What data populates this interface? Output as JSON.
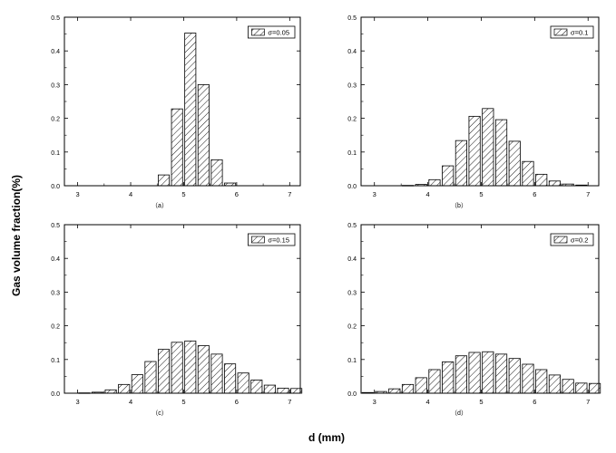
{
  "figure": {
    "ylabel": "Gas volume fraction(%)",
    "xlabel": "d (mm)"
  },
  "chart_data": [
    {
      "type": "bar",
      "subplot_label": "（a）",
      "legend": "σ=0.05",
      "x": [
        4.625,
        4.875,
        5.125,
        5.375,
        5.625,
        5.875
      ],
      "values": [
        0.032,
        0.228,
        0.453,
        0.3,
        0.077,
        0.008
      ],
      "xlim": [
        2.75,
        7.2
      ],
      "ylim": [
        0,
        0.5
      ],
      "xticks": [
        3,
        4,
        5,
        6,
        7
      ],
      "yticks": [
        0.0,
        0.1,
        0.2,
        0.3,
        0.4,
        0.5
      ],
      "legend_position": "top-right"
    },
    {
      "type": "bar",
      "subplot_label": "（b）",
      "legend": "σ=0.1",
      "x": [
        3.625,
        3.875,
        4.125,
        4.375,
        4.625,
        4.875,
        5.125,
        5.375,
        5.625,
        5.875,
        6.125,
        6.375,
        6.625,
        6.875
      ],
      "values": [
        0.001,
        0.004,
        0.018,
        0.059,
        0.134,
        0.206,
        0.229,
        0.196,
        0.132,
        0.072,
        0.034,
        0.014,
        0.005,
        0.002
      ],
      "xlim": [
        2.75,
        7.2
      ],
      "ylim": [
        0,
        0.5
      ],
      "xticks": [
        3,
        4,
        5,
        6,
        7
      ],
      "yticks": [
        0.0,
        0.1,
        0.2,
        0.3,
        0.4,
        0.5
      ],
      "legend_position": "top-right"
    },
    {
      "type": "bar",
      "subplot_label": "（c）",
      "legend": "σ=0.15",
      "x": [
        3.125,
        3.375,
        3.625,
        3.875,
        4.125,
        4.375,
        4.625,
        4.875,
        5.125,
        5.375,
        5.625,
        5.875,
        6.125,
        6.375,
        6.625,
        6.875,
        7.125
      ],
      "values": [
        0.001,
        0.003,
        0.01,
        0.026,
        0.055,
        0.094,
        0.13,
        0.151,
        0.155,
        0.141,
        0.116,
        0.087,
        0.06,
        0.039,
        0.024,
        0.015,
        0.014
      ],
      "xlim": [
        2.75,
        7.2
      ],
      "ylim": [
        0,
        0.5
      ],
      "xticks": [
        3,
        4,
        5,
        6,
        7
      ],
      "yticks": [
        0.0,
        0.1,
        0.2,
        0.3,
        0.4,
        0.5
      ],
      "legend_position": "top-right"
    },
    {
      "type": "bar",
      "subplot_label": "（d）",
      "legend": "σ=0.2",
      "x": [
        2.875,
        3.125,
        3.375,
        3.625,
        3.875,
        4.125,
        4.375,
        4.625,
        4.875,
        5.125,
        5.375,
        5.625,
        5.875,
        6.125,
        6.375,
        6.625,
        6.875,
        7.125
      ],
      "values": [
        0.002,
        0.005,
        0.013,
        0.026,
        0.046,
        0.07,
        0.093,
        0.111,
        0.121,
        0.123,
        0.116,
        0.103,
        0.086,
        0.07,
        0.054,
        0.041,
        0.03,
        0.029
      ],
      "xlim": [
        2.75,
        7.2
      ],
      "ylim": [
        0,
        0.5
      ],
      "xticks": [
        3,
        4,
        5,
        6,
        7
      ],
      "yticks": [
        0.0,
        0.1,
        0.2,
        0.3,
        0.4,
        0.5
      ],
      "legend_position": "top-right"
    }
  ]
}
